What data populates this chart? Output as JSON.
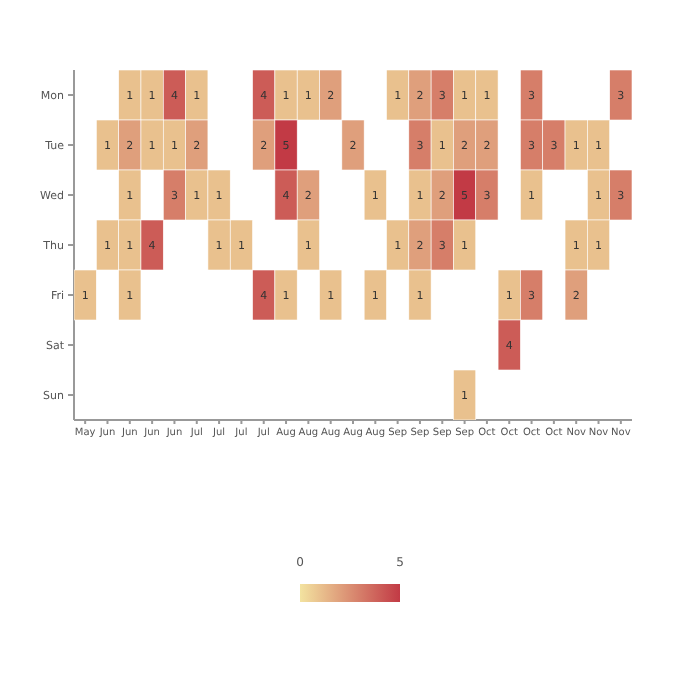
{
  "chart_data": {
    "type": "heatmap",
    "categories": [
      "May",
      "Jun",
      "Jun",
      "Jun",
      "Jun",
      "Jul",
      "Jul",
      "Jul",
      "Jul",
      "Aug",
      "Aug",
      "Aug",
      "Aug",
      "Aug",
      "Sep",
      "Sep",
      "Sep",
      "Sep",
      "Oct",
      "Oct",
      "Oct",
      "Oct",
      "Nov",
      "Nov",
      "Nov"
    ],
    "y_categories": [
      "Mon",
      "Tue",
      "Wed",
      "Thu",
      "Fri",
      "Sat",
      "Sun"
    ],
    "cells": [
      [
        null,
        null,
        1,
        1,
        4,
        1,
        null,
        null,
        4,
        1,
        1,
        2,
        null,
        null,
        1,
        2,
        3,
        1,
        1,
        null,
        3,
        null,
        null,
        null,
        3
      ],
      [
        null,
        1,
        2,
        1,
        1,
        2,
        null,
        null,
        2,
        5,
        null,
        null,
        2,
        null,
        null,
        3,
        1,
        2,
        2,
        null,
        3,
        3,
        1,
        1,
        null
      ],
      [
        null,
        null,
        1,
        null,
        3,
        1,
        1,
        null,
        null,
        4,
        2,
        null,
        null,
        1,
        null,
        1,
        2,
        5,
        3,
        null,
        1,
        null,
        null,
        1,
        3
      ],
      [
        null,
        1,
        1,
        4,
        null,
        null,
        1,
        1,
        null,
        null,
        1,
        null,
        null,
        null,
        1,
        2,
        3,
        1,
        null,
        null,
        null,
        null,
        1,
        1,
        null
      ],
      [
        1,
        null,
        1,
        null,
        null,
        null,
        null,
        null,
        4,
        1,
        null,
        1,
        null,
        1,
        null,
        1,
        null,
        null,
        null,
        1,
        3,
        null,
        2,
        null,
        null
      ],
      [
        null,
        null,
        null,
        null,
        null,
        null,
        null,
        null,
        null,
        null,
        null,
        null,
        null,
        null,
        null,
        null,
        null,
        null,
        null,
        4,
        null,
        null,
        null,
        null,
        null
      ],
      [
        null,
        null,
        null,
        null,
        null,
        null,
        null,
        null,
        null,
        null,
        null,
        null,
        null,
        null,
        null,
        null,
        null,
        1,
        null,
        null,
        null,
        null,
        null,
        null,
        null
      ]
    ],
    "clim": [
      0,
      5
    ],
    "cticks": [
      0,
      5
    ],
    "colors": [
      "#f3e3a0",
      "#c23a45"
    ],
    "data_labels": true
  }
}
